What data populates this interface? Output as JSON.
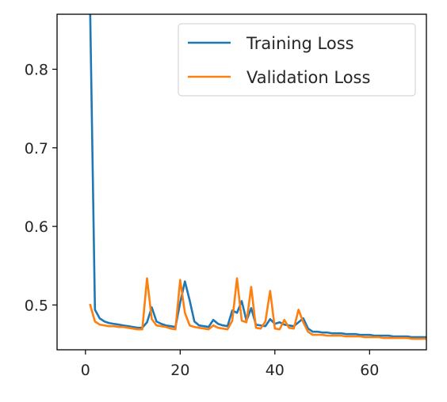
{
  "chart_data": {
    "type": "line",
    "title": "",
    "xlabel": "",
    "ylabel": "",
    "xlim": [
      -6,
      72
    ],
    "ylim": [
      0.443,
      0.87
    ],
    "xticks": [
      0,
      20,
      40,
      60
    ],
    "yticks": [
      0.5,
      0.6,
      0.7,
      0.8
    ],
    "xtick_labels": [
      "0",
      "20",
      "40",
      "60"
    ],
    "ytick_labels": [
      "0.5",
      "0.6",
      "0.7",
      "0.8"
    ],
    "grid": false,
    "legend_position": "top-right",
    "series": [
      {
        "name": "Training Loss",
        "color": "#1f77b4",
        "x": [
          1,
          2,
          3,
          4,
          5,
          6,
          7,
          8,
          9,
          10,
          11,
          12,
          13,
          14,
          15,
          16,
          17,
          18,
          19,
          20,
          21,
          22,
          23,
          24,
          25,
          26,
          27,
          28,
          29,
          30,
          31,
          32,
          33,
          34,
          35,
          36,
          37,
          38,
          39,
          40,
          41,
          42,
          43,
          44,
          45,
          46,
          47,
          48,
          49,
          50,
          51,
          52,
          53,
          54,
          55,
          56,
          57,
          58,
          59,
          60,
          61,
          62,
          63,
          64,
          65,
          66,
          67,
          68,
          69,
          70,
          71,
          72
        ],
        "y": [
          0.87,
          0.494,
          0.483,
          0.479,
          0.477,
          0.476,
          0.475,
          0.474,
          0.473,
          0.472,
          0.471,
          0.471,
          0.478,
          0.497,
          0.479,
          0.476,
          0.474,
          0.473,
          0.472,
          0.503,
          0.53,
          0.506,
          0.479,
          0.474,
          0.473,
          0.472,
          0.481,
          0.476,
          0.474,
          0.473,
          0.493,
          0.49,
          0.505,
          0.48,
          0.496,
          0.475,
          0.474,
          0.473,
          0.482,
          0.476,
          0.478,
          0.475,
          0.474,
          0.473,
          0.478,
          0.483,
          0.47,
          0.466,
          0.466,
          0.465,
          0.465,
          0.464,
          0.464,
          0.464,
          0.463,
          0.463,
          0.463,
          0.462,
          0.462,
          0.462,
          0.461,
          0.461,
          0.461,
          0.461,
          0.46,
          0.46,
          0.46,
          0.46,
          0.459,
          0.459,
          0.459,
          0.459
        ]
      },
      {
        "name": "Validation Loss",
        "color": "#ff7f0e",
        "x": [
          1,
          2,
          3,
          4,
          5,
          6,
          7,
          8,
          9,
          10,
          11,
          12,
          13,
          14,
          15,
          16,
          17,
          18,
          19,
          20,
          21,
          22,
          23,
          24,
          25,
          26,
          27,
          28,
          29,
          30,
          31,
          32,
          33,
          34,
          35,
          36,
          37,
          38,
          39,
          40,
          41,
          42,
          43,
          44,
          45,
          46,
          47,
          48,
          49,
          50,
          51,
          52,
          53,
          54,
          55,
          56,
          57,
          58,
          59,
          60,
          61,
          62,
          63,
          64,
          65,
          66,
          67,
          68,
          69,
          70,
          71,
          72
        ],
        "y": [
          0.5,
          0.479,
          0.475,
          0.474,
          0.473,
          0.473,
          0.472,
          0.472,
          0.471,
          0.47,
          0.469,
          0.469,
          0.534,
          0.482,
          0.474,
          0.473,
          0.472,
          0.47,
          0.469,
          0.532,
          0.49,
          0.474,
          0.472,
          0.471,
          0.47,
          0.469,
          0.474,
          0.471,
          0.47,
          0.469,
          0.48,
          0.534,
          0.48,
          0.478,
          0.523,
          0.471,
          0.47,
          0.479,
          0.518,
          0.47,
          0.469,
          0.481,
          0.471,
          0.47,
          0.494,
          0.478,
          0.466,
          0.462,
          0.462,
          0.462,
          0.461,
          0.461,
          0.461,
          0.461,
          0.46,
          0.46,
          0.46,
          0.46,
          0.459,
          0.459,
          0.459,
          0.459,
          0.458,
          0.458,
          0.458,
          0.458,
          0.458,
          0.458,
          0.457,
          0.457,
          0.457,
          0.457
        ]
      }
    ]
  }
}
